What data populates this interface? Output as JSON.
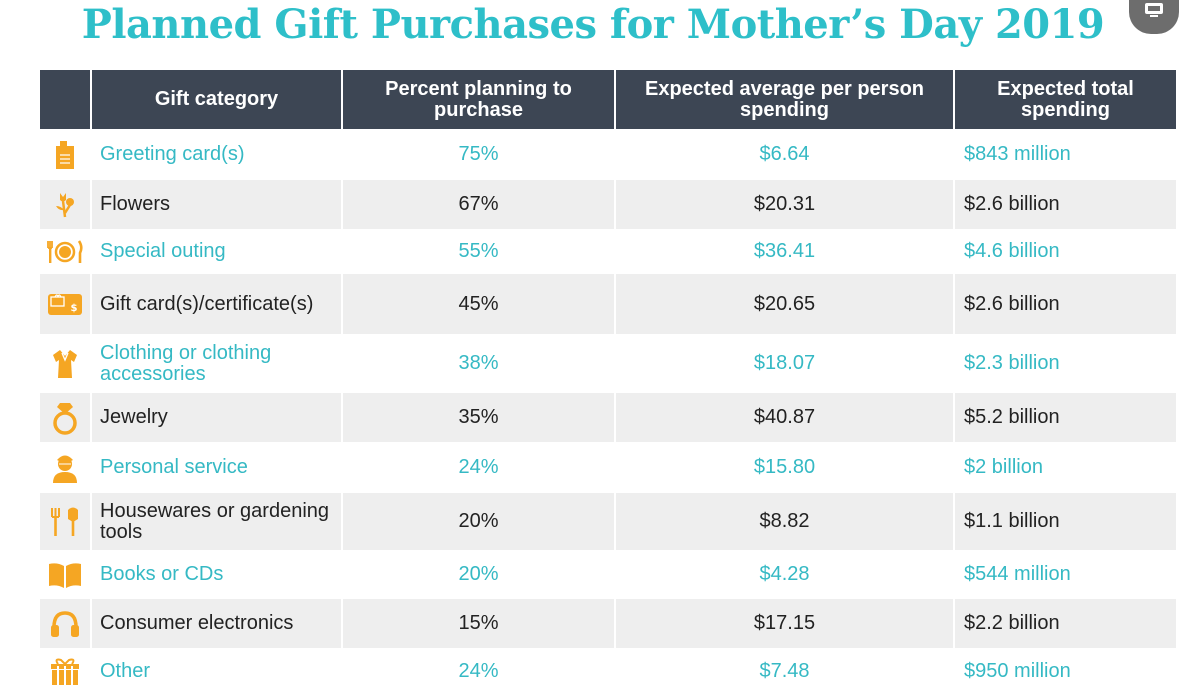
{
  "colors": {
    "title": "#2ebfc9",
    "header_bg": "#3d4654",
    "accent_text": "#35b9c4",
    "plain_text": "#222222",
    "icon": "#f5a623",
    "row_stripe": "#eeeeee"
  },
  "title": "Planned Gift Purchases for Mother’s Day 2019",
  "corner_button_icon": "monitor-icon",
  "chart_data": {
    "type": "table",
    "columns": [
      "",
      "Gift category",
      "Percent planning to purchase",
      "Expected average per person spending",
      "Expected total spending"
    ],
    "rows": [
      {
        "icon": "greeting-card-icon",
        "category": "Greeting card(s)",
        "percent": "75%",
        "avg_spending": "$6.64",
        "total_spending": "$843 million",
        "accent": true
      },
      {
        "icon": "flowers-icon",
        "category": "Flowers",
        "percent": "67%",
        "avg_spending": "$20.31",
        "total_spending": "$2.6 billion",
        "accent": false
      },
      {
        "icon": "dining-plate-icon",
        "category": "Special outing",
        "percent": "55%",
        "avg_spending": "$36.41",
        "total_spending": "$4.6 billion",
        "accent": true
      },
      {
        "icon": "gift-card-icon",
        "category": "Gift card(s)/certificate(s)",
        "percent": "45%",
        "avg_spending": "$20.65",
        "total_spending": "$2.6 billion",
        "accent": false
      },
      {
        "icon": "blouse-icon",
        "category": "Clothing or clothing accessories",
        "percent": "38%",
        "avg_spending": "$18.07",
        "total_spending": "$2.3 billion",
        "accent": true
      },
      {
        "icon": "ring-icon",
        "category": "Jewelry",
        "percent": "35%",
        "avg_spending": "$40.87",
        "total_spending": "$5.2 billion",
        "accent": false
      },
      {
        "icon": "person-towel-icon",
        "category": "Personal service",
        "percent": "24%",
        "avg_spending": "$15.80",
        "total_spending": "$2 billion",
        "accent": true
      },
      {
        "icon": "fork-trowel-icon",
        "category": "Housewares or gardening tools",
        "percent": "20%",
        "avg_spending": "$8.82",
        "total_spending": "$1.1 billion",
        "accent": false
      },
      {
        "icon": "open-book-icon",
        "category": "Books or CDs",
        "percent": "20%",
        "avg_spending": "$4.28",
        "total_spending": "$544 million",
        "accent": true
      },
      {
        "icon": "headphones-icon",
        "category": "Consumer electronics",
        "percent": "15%",
        "avg_spending": "$17.15",
        "total_spending": "$2.2 billion",
        "accent": false
      },
      {
        "icon": "gift-box-icon",
        "category": "Other",
        "percent": "24%",
        "avg_spending": "$7.48",
        "total_spending": "$950 million",
        "accent": true
      }
    ]
  }
}
